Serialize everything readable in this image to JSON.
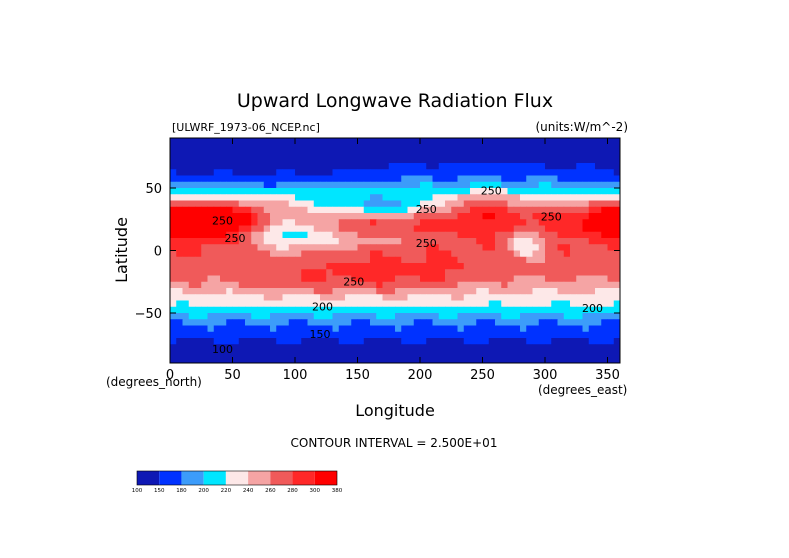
{
  "chart_data": {
    "type": "heatmap",
    "title": "Upward Longwave Radiation Flux",
    "file_label": "[ULWRF_1973-06_NCEP.nc]",
    "units_label": "(units:W/m^-2)",
    "xlabel": "Longitude",
    "ylabel": "Latitude",
    "x_unit_label": "(degrees_east)",
    "y_unit_label": "(degrees_north)",
    "xlim": [
      0,
      360
    ],
    "ylim": [
      -90,
      90
    ],
    "x_ticks": [
      0,
      50,
      100,
      150,
      200,
      250,
      300,
      350
    ],
    "y_ticks": [
      50,
      0,
      -50
    ],
    "contour_interval_text": "CONTOUR INTERVAL = 2.500E+01",
    "contour_labels": [
      {
        "text": "250",
        "lon": 257,
        "lat": 45
      },
      {
        "text": "250",
        "lon": 305,
        "lat": 24
      },
      {
        "text": "250",
        "lon": 205,
        "lat": 30
      },
      {
        "text": "250",
        "lon": 42,
        "lat": 21
      },
      {
        "text": "250",
        "lon": 52,
        "lat": 7
      },
      {
        "text": "250",
        "lon": 205,
        "lat": 3
      },
      {
        "text": "250",
        "lon": 147,
        "lat": -28
      },
      {
        "text": "200",
        "lon": 122,
        "lat": -48
      },
      {
        "text": "200",
        "lon": 338,
        "lat": -49
      },
      {
        "text": "150",
        "lon": 120,
        "lat": -70
      },
      {
        "text": "100",
        "lon": 42,
        "lat": -82
      }
    ],
    "colorbar": {
      "levels": [
        "100",
        "150",
        "180",
        "200",
        "220",
        "240",
        "260",
        "280",
        "300",
        "380"
      ],
      "colors": [
        "#0e18b4",
        "#0032ff",
        "#3c9cfa",
        "#00e6ff",
        "#fde8e8",
        "#f5a4a4",
        "#f05a5a",
        "#ff2828",
        "#ff0000"
      ]
    }
  }
}
